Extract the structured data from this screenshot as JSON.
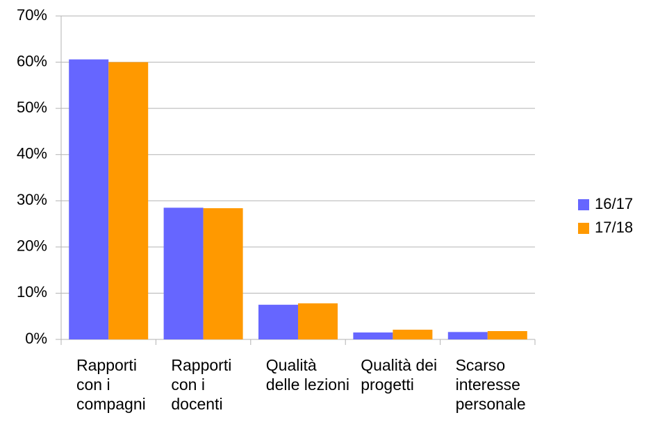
{
  "chart_data": {
    "type": "bar",
    "categories": [
      "Rapporti con i compagni",
      "Rapporti con i docenti",
      "Qualità delle lezioni",
      "Qualità dei progetti",
      "Scarso interesse personale"
    ],
    "series": [
      {
        "name": "16/17",
        "color": "#6666ff",
        "values": [
          60.6,
          28.5,
          7.5,
          1.5,
          1.6
        ]
      },
      {
        "name": "17/18",
        "color": "#ff9900",
        "values": [
          60.0,
          28.4,
          7.8,
          2.1,
          1.8
        ]
      }
    ],
    "ylim": [
      0,
      70
    ],
    "yticks": [
      {
        "value": 0,
        "label": "0%"
      },
      {
        "value": 10,
        "label": "10%"
      },
      {
        "value": 20,
        "label": "20%"
      },
      {
        "value": 30,
        "label": "30%"
      },
      {
        "value": 40,
        "label": "40%"
      },
      {
        "value": 50,
        "label": "50%"
      },
      {
        "value": 60,
        "label": "60%"
      },
      {
        "value": 70,
        "label": "70%"
      }
    ],
    "grid": true,
    "legend": "right"
  }
}
